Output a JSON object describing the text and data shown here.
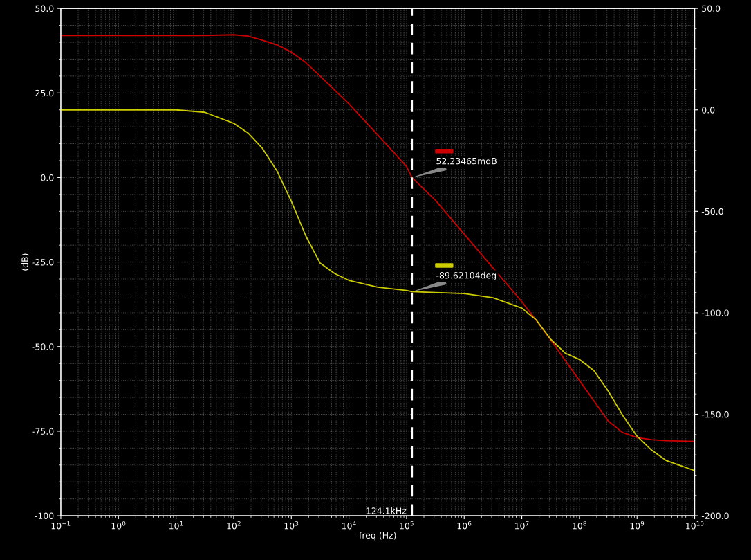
{
  "chart_data": {
    "type": "line",
    "xlabel": "freq (Hz)",
    "ylabel": "(dB)",
    "log": "x",
    "grid": true,
    "legend": false,
    "marker": "none",
    "line_style": "solid",
    "x": [
      0.1,
      1,
      10,
      31.6,
      100,
      178,
      316,
      562,
      1000,
      1778,
      3162,
      5623,
      10000,
      31623,
      100000,
      124100,
      316228,
      1000000,
      3162278,
      10000000,
      17782794,
      31622777,
      56234133,
      100000000,
      177827941,
      316227766,
      562341325,
      1000000000,
      1778279410,
      3162277660,
      10000000000
    ],
    "series": [
      {
        "color": "#cc0000",
        "values": [
          42,
          42,
          42,
          42,
          42.2,
          41.8,
          40.6,
          39.2,
          37.1,
          34,
          30,
          25.9,
          21.8,
          12.6,
          3.3,
          0,
          -6.7,
          -16.7,
          -26.7,
          -36.7,
          -42.2,
          -48,
          -54,
          -60,
          -66,
          -72,
          -75.4,
          -76.9,
          -77.5,
          -77.8,
          -78
        ]
      },
      {
        "color": "#cccc00",
        "axis": "y2",
        "values": [
          0,
          0,
          0,
          -1.2,
          -6.6,
          -11.4,
          -19,
          -30,
          -45,
          -62,
          -75.5,
          -80.6,
          -84,
          -87.4,
          -89,
          -89.6,
          -90,
          -90.5,
          -92.6,
          -97.7,
          -103.5,
          -113,
          -119.8,
          -123,
          -128.4,
          -138.6,
          -150.5,
          -160.8,
          -167.6,
          -172.7,
          -177.8
        ]
      }
    ],
    "xlim": [
      0.1,
      10000000000
    ],
    "xticks": [
      {
        "value": 0.1,
        "label": "10$^{−1}$"
      },
      {
        "value": 1,
        "label": "10$^{0}$"
      },
      {
        "value": 10,
        "label": "10$^{1}$"
      },
      {
        "value": 100,
        "label": "10$^{2}$"
      },
      {
        "value": 1000,
        "label": "10$^{3}$"
      },
      {
        "value": 10000,
        "label": "10$^{4}$"
      },
      {
        "value": 100000,
        "label": "10$^{5}$"
      },
      {
        "value": 1000000,
        "label": "10$^{6}$"
      },
      {
        "value": 10000000,
        "label": "10$^{7}$"
      },
      {
        "value": 100000000,
        "label": "10$^{8}$"
      },
      {
        "value": 1000000000,
        "label": "10$^{9}$"
      },
      {
        "value": 10000000000,
        "label": "10$^{10}$"
      }
    ],
    "ylim": [
      -100,
      50
    ],
    "yticks": [
      {
        "value": 50,
        "label": "50.0"
      },
      {
        "value": 25,
        "label": "25.0"
      },
      {
        "value": 0,
        "label": "0.0"
      },
      {
        "value": -25,
        "label": "-25.0"
      },
      {
        "value": -50,
        "label": "-50.0"
      },
      {
        "value": -75,
        "label": "-75.0"
      },
      -100
    ],
    "y2lim": [
      -200,
      50
    ],
    "y2ticks": [
      {
        "value": 50,
        "label": "50.0"
      },
      {
        "value": 0,
        "label": "0.0"
      },
      {
        "value": -50,
        "label": "-50.0"
      },
      {
        "value": -100,
        "label": "-100.0"
      },
      {
        "value": -150,
        "label": "-150.0"
      },
      {
        "value": -200,
        "label": "-200.0"
      }
    ],
    "ref_lines": [
      {
        "axis": "x",
        "value": 124100,
        "label": "124.1kHz",
        "color": "#ffffff",
        "line_style": "dashed"
      }
    ],
    "annotations": [
      {
        "text": "52.23465mdB",
        "x": 124100,
        "y": 0
      },
      {
        "text": "-89.62104deg",
        "x": 124100,
        "y": -33.8
      }
    ]
  }
}
